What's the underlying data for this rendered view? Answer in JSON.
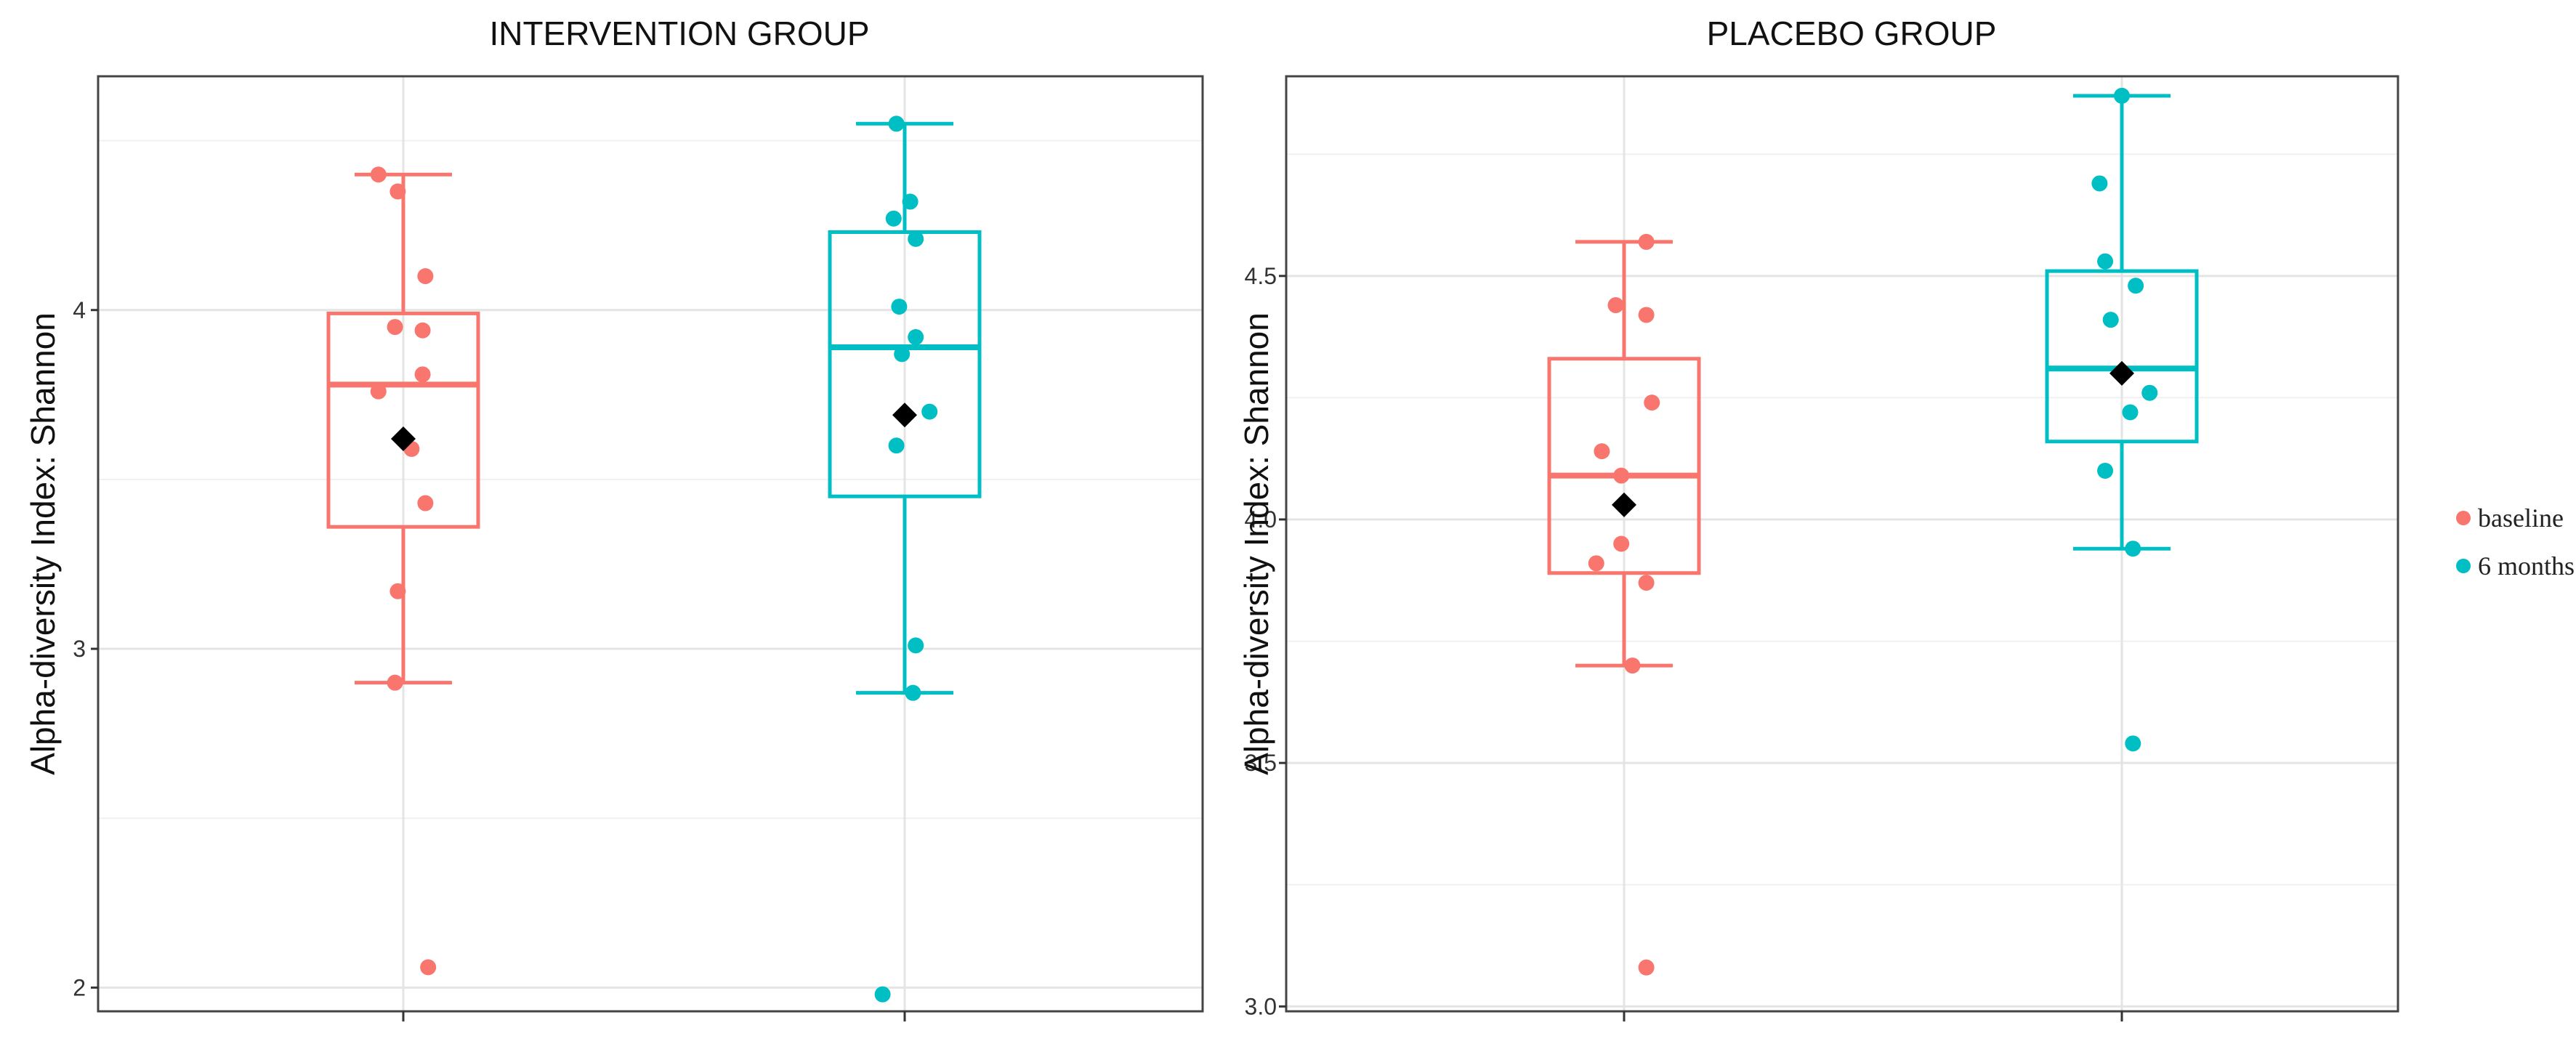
{
  "chart_data": [
    {
      "type": "boxplot",
      "title": "INTERVENTION GROUP",
      "ylabel": "Alpha-diversity Index: Shannon",
      "ylim": [
        1.93,
        4.69
      ],
      "yticks": [
        2,
        3,
        4
      ],
      "ytick_labels": [
        "2",
        "3",
        "4"
      ],
      "grid": true,
      "groups": [
        {
          "name": "baseline",
          "color": "#F8766D",
          "box": {
            "whisker_low": 2.9,
            "q1": 3.36,
            "median": 3.78,
            "q3": 3.99,
            "whisker_high": 4.4
          },
          "mean": 3.62,
          "points": [
            [
              -0.09,
              4.4
            ],
            [
              -0.02,
              4.35
            ],
            [
              0.08,
              4.1
            ],
            [
              -0.03,
              3.95
            ],
            [
              0.07,
              3.94
            ],
            [
              0.07,
              3.81
            ],
            [
              -0.09,
              3.76
            ],
            [
              0.03,
              3.59
            ],
            [
              0.08,
              3.43
            ],
            [
              -0.02,
              3.17
            ],
            [
              -0.03,
              2.9
            ],
            [
              0.09,
              2.06
            ]
          ]
        },
        {
          "name": "6 months",
          "color": "#00BFC4",
          "box": {
            "whisker_low": 2.87,
            "q1": 3.45,
            "median": 3.89,
            "q3": 4.23,
            "whisker_high": 4.55
          },
          "mean": 3.69,
          "points": [
            [
              -0.03,
              4.55
            ],
            [
              0.02,
              4.32
            ],
            [
              -0.04,
              4.27
            ],
            [
              0.04,
              4.21
            ],
            [
              -0.02,
              4.01
            ],
            [
              0.04,
              3.92
            ],
            [
              -0.01,
              3.87
            ],
            [
              0.09,
              3.7
            ],
            [
              -0.03,
              3.6
            ],
            [
              0.04,
              3.01
            ],
            [
              0.03,
              2.87
            ],
            [
              -0.08,
              1.98
            ]
          ]
        }
      ]
    },
    {
      "type": "boxplot",
      "title": "PLACEBO GROUP",
      "ylabel": "Alpha-diversity Index: Shannon",
      "ylim": [
        2.99,
        4.91
      ],
      "yticks": [
        3.0,
        3.5,
        4.0,
        4.5
      ],
      "ytick_labels": [
        "3.0",
        "3.5",
        "4.0",
        "4.5"
      ],
      "grid": true,
      "groups": [
        {
          "name": "baseline",
          "color": "#F8766D",
          "box": {
            "whisker_low": 3.7,
            "q1": 3.89,
            "median": 4.09,
            "q3": 4.33,
            "whisker_high": 4.57
          },
          "mean": 4.03,
          "points": [
            [
              0.08,
              4.57
            ],
            [
              -0.03,
              4.44
            ],
            [
              0.08,
              4.42
            ],
            [
              0.1,
              4.24
            ],
            [
              -0.08,
              4.14
            ],
            [
              -0.01,
              4.09
            ],
            [
              -0.1,
              3.91
            ],
            [
              -0.01,
              3.95
            ],
            [
              0.08,
              3.87
            ],
            [
              0.03,
              3.7
            ],
            [
              0.08,
              3.08
            ]
          ]
        },
        {
          "name": "6 months",
          "color": "#00BFC4",
          "box": {
            "whisker_low": 3.94,
            "q1": 4.16,
            "median": 4.31,
            "q3": 4.51,
            "whisker_high": 4.87
          },
          "mean": 4.3,
          "points": [
            [
              0.0,
              4.87
            ],
            [
              -0.08,
              4.69
            ],
            [
              -0.06,
              4.53
            ],
            [
              0.05,
              4.48
            ],
            [
              -0.04,
              4.41
            ],
            [
              0.1,
              4.26
            ],
            [
              0.03,
              4.22
            ],
            [
              -0.06,
              4.1
            ],
            [
              0.04,
              3.94
            ],
            [
              0.04,
              3.54
            ]
          ]
        }
      ]
    }
  ],
  "legend": {
    "items": [
      {
        "label": "baseline",
        "color": "#F8766D"
      },
      {
        "label": "6 months",
        "color": "#00BFC4"
      }
    ]
  },
  "mean_marker_color": "#000000"
}
